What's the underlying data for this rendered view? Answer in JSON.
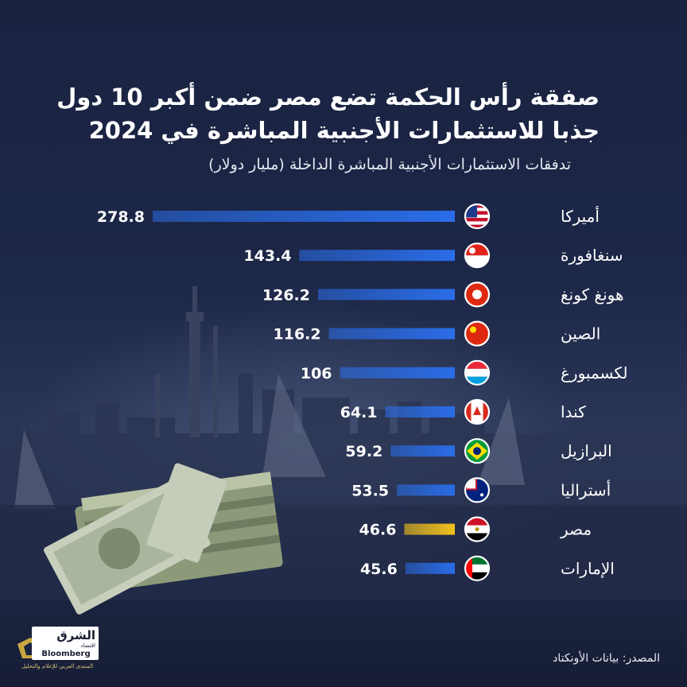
{
  "title_lines": [
    "صفقة رأس الحكمة تضع مصر ضمن أكبر 10 دول",
    "جذبا للاستثمارات الأجنبية المباشرة في 2024"
  ],
  "subtitle": "تدفقات الاستثمارات الأجنبية المباشرة الداخلة (مليار دولار)",
  "source": "المصدر: بيانات الأونكتاد",
  "logo": {
    "name": "الشرق",
    "sub": "اقتصاد",
    "partner": "Bloomberg",
    "caption": "المنتدى العربي للإعلام والتحليل"
  },
  "colors": {
    "bar": "#2a6de8",
    "highlight": "#f3c21c",
    "background": "#1b2440"
  },
  "chart_data": {
    "type": "bar",
    "orientation": "horizontal",
    "categories": [
      "أميركا",
      "سنغافورة",
      "هونغ كونغ",
      "الصين",
      "لكسمبورغ",
      "كندا",
      "البرازيل",
      "أستراليا",
      "مصر",
      "الإمارات"
    ],
    "values": [
      278.8,
      143.4,
      126.2,
      116.2,
      106,
      64.1,
      59.2,
      53.5,
      46.6,
      45.6
    ],
    "value_labels": [
      "278.8",
      "143.4",
      "126.2",
      "116.2",
      "106",
      "64.1",
      "59.2",
      "53.5",
      "46.6",
      "45.6"
    ],
    "flags": [
      "us-flag",
      "singapore-flag",
      "hong-kong-flag",
      "china-flag",
      "luxembourg-flag",
      "canada-flag",
      "brazil-flag",
      "australia-flag",
      "egypt-flag",
      "uae-flag"
    ],
    "highlight_category": "مصر",
    "xlim": [
      0,
      278.8
    ],
    "grid": false,
    "legend": "none",
    "title": "صفقة رأس الحكمة تضع مصر ضمن أكبر 10 دول جذبا للاستثمارات الأجنبية المباشرة في 2024",
    "subtitle": "تدفقات الاستثمارات الأجنبية المباشرة الداخلة (مليار دولار)"
  }
}
